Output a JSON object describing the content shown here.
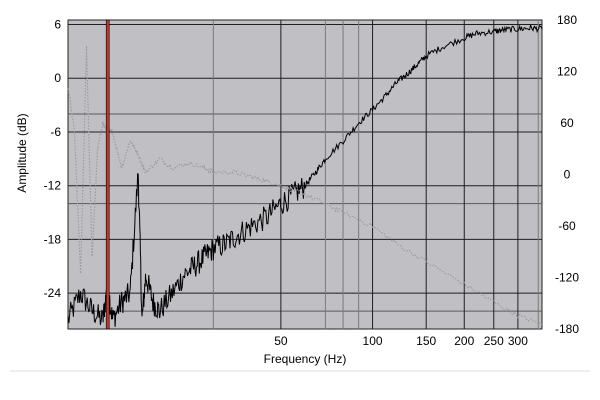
{
  "chart_data": {
    "type": "line",
    "title": "",
    "xlabel": "Frequency (Hz)",
    "ylabel": "Amplitude (dB)",
    "y2label": "",
    "x_scale": "log",
    "xlim": [
      10,
      360
    ],
    "ylim": [
      -28,
      6.5
    ],
    "y2lim": [
      -180,
      180
    ],
    "grid": true,
    "legend": "none",
    "x_ticks": [
      {
        "value": 50,
        "label": "50"
      },
      {
        "value": 100,
        "label": "100"
      },
      {
        "value": 150,
        "label": "150"
      },
      {
        "value": 200,
        "label": "200"
      },
      {
        "value": 250,
        "label": "250"
      },
      {
        "value": 300,
        "label": "300"
      }
    ],
    "x_minor_gridlines": [
      30,
      70,
      80,
      90,
      350
    ],
    "y_ticks": [
      {
        "value": 6,
        "label": "6"
      },
      {
        "value": 0,
        "label": "0"
      },
      {
        "value": -6,
        "label": "-6"
      },
      {
        "value": -12,
        "label": "-12"
      },
      {
        "value": -18,
        "label": "-18"
      },
      {
        "value": -24,
        "label": "-24"
      }
    ],
    "y2_ticks": [
      {
        "value": 180,
        "label": "180"
      },
      {
        "value": 120,
        "label": "120"
      },
      {
        "value": 60,
        "label": "60"
      },
      {
        "value": 0,
        "label": "0"
      },
      {
        "value": -60,
        "label": "-60"
      },
      {
        "value": -120,
        "label": "-120"
      },
      {
        "value": -180,
        "label": "-180"
      }
    ],
    "y_minor_gridlines": [
      -4,
      -14,
      -26
    ],
    "marker_line": {
      "x": 13.5,
      "color": "#c0392b"
    },
    "series": [
      {
        "axis": "left",
        "style": "solid",
        "color": "#000000",
        "x": [
          10,
          11,
          12,
          13,
          13.5,
          14,
          15,
          16,
          17,
          17.5,
          18,
          19,
          20,
          22,
          24,
          26,
          28,
          30,
          33,
          36,
          40,
          45,
          50,
          55,
          60,
          65,
          70,
          80,
          90,
          100,
          110,
          120,
          130,
          140,
          150,
          170,
          200,
          220,
          250,
          270,
          300,
          330,
          360
        ],
        "y": [
          -27,
          -24,
          -26,
          -27,
          -23,
          -27,
          -25,
          -24,
          -10.5,
          -27,
          -22,
          -25,
          -26,
          -24,
          -22,
          -21,
          -20,
          -19,
          -18.5,
          -17.5,
          -16.5,
          -15.5,
          -14,
          -13,
          -12,
          -10.5,
          -9,
          -7,
          -5,
          -3.5,
          -2,
          -0.5,
          0.5,
          1.5,
          2.5,
          3.5,
          4.5,
          5,
          5.2,
          5.4,
          5.5,
          5.6,
          5.5
        ]
      },
      {
        "axis": "left",
        "style": "dotted",
        "color": "#9a9a9a",
        "x": [
          10,
          10.5,
          11,
          11.5,
          12,
          12.5,
          13,
          13.5,
          14,
          15,
          16,
          17,
          18,
          20,
          22,
          25,
          28,
          30,
          35,
          40,
          45,
          50,
          55,
          60,
          70,
          80,
          100,
          120,
          150,
          200,
          250,
          300,
          360
        ],
        "y": [
          -1,
          -6,
          -22,
          3.5,
          -20,
          -8,
          -5,
          -6,
          -6,
          -10,
          -7,
          -8.5,
          -10.5,
          -9,
          -10,
          -9.5,
          -10,
          -10.5,
          -10.5,
          -11,
          -11.5,
          -12,
          -12.5,
          -13,
          -14,
          -15,
          -16.5,
          -18.5,
          -20.5,
          -23,
          -25,
          -26.5,
          -27.5
        ]
      }
    ]
  }
}
